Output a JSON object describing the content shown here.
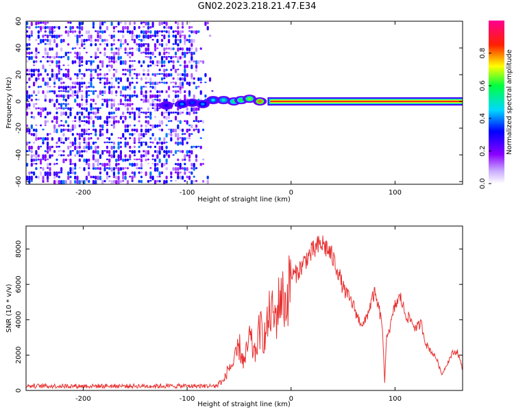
{
  "title": "GN02.2023.218.21.47.E34",
  "chart_data": [
    {
      "type": "heatmap",
      "xlabel": "Height of straight line (km)",
      "ylabel": "Frequency (Hz)",
      "xlim": [
        -255,
        165
      ],
      "ylim": [
        -62,
        60
      ],
      "xticks": [
        -200,
        -100,
        0,
        100
      ],
      "yticks": [
        -60,
        -40,
        -20,
        0,
        20,
        40,
        60
      ],
      "colorbar": {
        "label": "Normalized spectral amplitude",
        "range": [
          0,
          1
        ],
        "ticks": [
          0.0,
          0.2,
          0.4,
          0.6,
          0.8
        ],
        "colors": [
          "#ffffff",
          "#8a00ff",
          "#0000ff",
          "#00d8ff",
          "#00ff40",
          "#ffff00",
          "#ff2000",
          "#ff0090"
        ]
      },
      "noise_region_x": [
        -255,
        -80
      ],
      "tone_track": [
        {
          "x": -120,
          "f": -3,
          "amp": 0.3
        },
        {
          "x": -105,
          "f": -2,
          "amp": 0.4
        },
        {
          "x": -95,
          "f": -1,
          "amp": 0.35
        },
        {
          "x": -85,
          "f": -2,
          "amp": 0.4
        },
        {
          "x": -75,
          "f": 1,
          "amp": 0.45
        },
        {
          "x": -65,
          "f": 1,
          "amp": 0.5
        },
        {
          "x": -55,
          "f": 0,
          "amp": 0.55
        },
        {
          "x": -48,
          "f": 1,
          "amp": 0.6
        },
        {
          "x": -40,
          "f": 2,
          "amp": 0.65
        },
        {
          "x": -30,
          "f": 0,
          "amp": 0.8
        },
        {
          "x": -20,
          "f": 0,
          "amp": 0.85
        },
        {
          "x": 0,
          "f": 0,
          "amp": 0.9
        },
        {
          "x": 165,
          "f": 0,
          "amp": 0.9
        }
      ]
    },
    {
      "type": "line",
      "xlabel": "Height of straight line (km)",
      "ylabel": "SNR (10 * v/v)",
      "xlim": [
        -255,
        165
      ],
      "ylim": [
        0,
        9300
      ],
      "xticks": [
        -200,
        -100,
        0,
        100
      ],
      "yticks": [
        0,
        2000,
        4000,
        6000,
        8000
      ],
      "color": "#e83030",
      "series": [
        {
          "x": [
            -255,
            -200,
            -150,
            -100,
            -80,
            -65,
            -60,
            -55,
            -50,
            -45,
            -40,
            -35,
            -30,
            -25,
            -20,
            -15,
            -10,
            -5,
            0,
            5,
            10,
            15,
            20,
            25,
            30,
            35,
            40,
            45,
            50,
            55,
            60,
            65,
            70,
            75,
            80,
            85,
            88,
            90,
            92,
            95,
            100,
            105,
            110,
            115,
            120,
            125,
            130,
            135,
            140,
            145,
            150,
            155,
            160,
            165
          ],
          "y": [
            250,
            250,
            250,
            250,
            300,
            500,
            1300,
            1500,
            2500,
            1500,
            3000,
            2000,
            3500,
            3000,
            4500,
            4000,
            5500,
            4800,
            6500,
            6600,
            7000,
            7500,
            7800,
            8100,
            8300,
            8000,
            7500,
            6800,
            5800,
            5300,
            4800,
            4000,
            3700,
            4600,
            5500,
            4500,
            3500,
            400,
            3200,
            3500,
            4800,
            5300,
            4300,
            4000,
            3500,
            3800,
            2600,
            2200,
            1800,
            900,
            1500,
            2100,
            2200,
            1200
          ]
        }
      ]
    }
  ]
}
